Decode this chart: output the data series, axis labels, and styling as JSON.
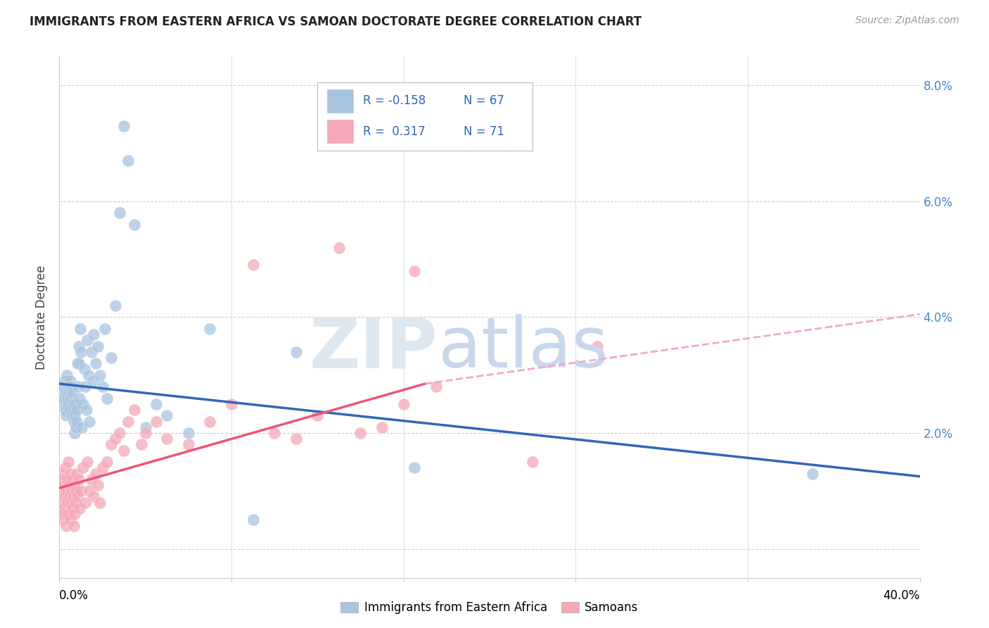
{
  "title": "IMMIGRANTS FROM EASTERN AFRICA VS SAMOAN DOCTORATE DEGREE CORRELATION CHART",
  "source": "Source: ZipAtlas.com",
  "ylabel": "Doctorate Degree",
  "xlim": [
    0.0,
    40.0
  ],
  "ylim": [
    -0.5,
    8.5
  ],
  "blue_color": "#A8C4E0",
  "pink_color": "#F4A8B8",
  "blue_line_color": "#3366BB",
  "pink_line_color": "#EE5577",
  "pink_dash_color": "#F4A8C8",
  "watermark_zip": "ZIP",
  "watermark_atlas": "atlas",
  "blue_trend_x0": 0.0,
  "blue_trend_y0": 2.85,
  "blue_trend_x1": 40.0,
  "blue_trend_y1": 1.25,
  "pink_solid_x0": 0.0,
  "pink_solid_y0": 1.05,
  "pink_solid_x1": 17.0,
  "pink_solid_y1": 2.85,
  "pink_dash_x0": 17.0,
  "pink_dash_y0": 2.85,
  "pink_dash_x1": 40.0,
  "pink_dash_y1": 4.05,
  "blue_x": [
    0.15,
    0.18,
    0.2,
    0.22,
    0.25,
    0.28,
    0.3,
    0.32,
    0.35,
    0.38,
    0.4,
    0.42,
    0.45,
    0.48,
    0.5,
    0.52,
    0.55,
    0.58,
    0.6,
    0.62,
    0.65,
    0.68,
    0.7,
    0.72,
    0.75,
    0.78,
    0.8,
    0.82,
    0.85,
    0.88,
    0.9,
    0.92,
    0.95,
    0.98,
    1.0,
    1.05,
    1.1,
    1.15,
    1.2,
    1.25,
    1.3,
    1.35,
    1.4,
    1.5,
    1.55,
    1.6,
    1.7,
    1.8,
    1.9,
    2.0,
    2.1,
    2.2,
    2.4,
    2.6,
    2.8,
    3.0,
    3.2,
    3.5,
    4.0,
    4.5,
    5.0,
    6.0,
    7.0,
    9.0,
    11.0,
    16.5,
    35.0
  ],
  "blue_y": [
    2.7,
    2.5,
    2.8,
    2.6,
    2.9,
    2.4,
    2.7,
    2.3,
    3.0,
    2.6,
    2.8,
    2.5,
    2.7,
    2.4,
    2.9,
    2.6,
    2.8,
    2.3,
    2.7,
    2.5,
    2.4,
    2.2,
    2.3,
    2.0,
    2.5,
    2.1,
    2.4,
    2.2,
    3.2,
    2.8,
    3.5,
    3.2,
    2.6,
    3.8,
    3.4,
    2.1,
    2.5,
    3.1,
    2.8,
    2.4,
    3.6,
    3.0,
    2.2,
    3.4,
    2.9,
    3.7,
    3.2,
    3.5,
    3.0,
    2.8,
    3.8,
    2.6,
    3.3,
    4.2,
    5.8,
    7.3,
    6.7,
    5.6,
    2.1,
    2.5,
    2.3,
    2.0,
    3.8,
    0.5,
    3.4,
    1.4,
    1.3
  ],
  "pink_x": [
    0.08,
    0.1,
    0.12,
    0.14,
    0.16,
    0.18,
    0.2,
    0.22,
    0.25,
    0.28,
    0.3,
    0.32,
    0.35,
    0.38,
    0.4,
    0.42,
    0.45,
    0.48,
    0.5,
    0.52,
    0.55,
    0.58,
    0.6,
    0.62,
    0.65,
    0.68,
    0.7,
    0.72,
    0.75,
    0.78,
    0.8,
    0.85,
    0.9,
    0.95,
    1.0,
    1.1,
    1.2,
    1.3,
    1.4,
    1.5,
    1.6,
    1.7,
    1.8,
    1.9,
    2.0,
    2.2,
    2.4,
    2.6,
    2.8,
    3.0,
    3.2,
    3.5,
    3.8,
    4.0,
    4.5,
    5.0,
    6.0,
    7.0,
    8.0,
    9.0,
    10.0,
    11.0,
    12.0,
    13.0,
    14.0,
    15.0,
    16.0,
    16.5,
    17.5,
    22.0,
    25.0
  ],
  "pink_y": [
    1.3,
    0.8,
    1.2,
    0.5,
    1.0,
    0.7,
    1.1,
    0.6,
    0.9,
    1.4,
    1.0,
    0.4,
    1.2,
    0.8,
    1.5,
    0.6,
    1.1,
    0.9,
    0.5,
    1.3,
    0.8,
    1.0,
    0.7,
    1.2,
    0.9,
    0.4,
    1.1,
    0.6,
    0.8,
    1.0,
    1.3,
    0.9,
    1.2,
    0.7,
    1.0,
    1.4,
    0.8,
    1.5,
    1.0,
    1.2,
    0.9,
    1.3,
    1.1,
    0.8,
    1.4,
    1.5,
    1.8,
    1.9,
    2.0,
    1.7,
    2.2,
    2.4,
    1.8,
    2.0,
    2.2,
    1.9,
    1.8,
    2.2,
    2.5,
    4.9,
    2.0,
    1.9,
    2.3,
    5.2,
    2.0,
    2.1,
    2.5,
    4.8,
    2.8,
    1.5,
    3.5
  ]
}
